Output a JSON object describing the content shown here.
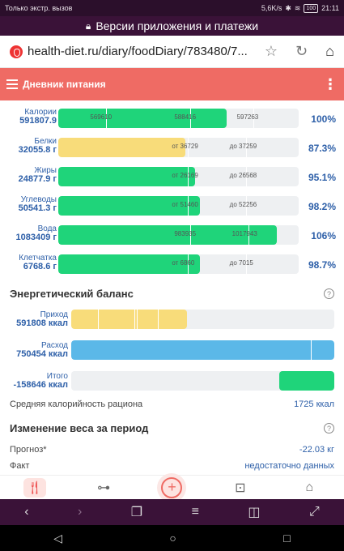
{
  "statusbar": {
    "left": "Только экстр. вызов",
    "right": "5,6K/s",
    "battery": "100",
    "time": "21:11"
  },
  "banner": {
    "text": "Версии приложения и платежи"
  },
  "browser": {
    "url": "health-diet.ru/diary/foodDiary/783480/7..."
  },
  "app": {
    "title": "Дневник питания"
  },
  "nutrients": [
    {
      "name": "Калории",
      "value": "591807.9",
      "marks": [
        "569610",
        "588416",
        "597263"
      ],
      "percent": "100%",
      "color": "#1fd47a",
      "fill": 0.7
    },
    {
      "name": "Белки",
      "value": "32055.8 г",
      "marks": [
        "от 36729",
        "до 37259"
      ],
      "percent": "87.3%",
      "color": "#f8dc7a",
      "fill": 0.53
    },
    {
      "name": "Жиры",
      "value": "24877.9 г",
      "marks": [
        "от 26169",
        "до 26568"
      ],
      "percent": "95.1%",
      "color": "#1fd47a",
      "fill": 0.57
    },
    {
      "name": "Углеводы",
      "value": "50541.3 г",
      "marks": [
        "от 51460",
        "до 52256"
      ],
      "percent": "98.2%",
      "color": "#1fd47a",
      "fill": 0.59
    },
    {
      "name": "Вода",
      "value": "1083409 г",
      "marks": [
        "983935",
        "1017943"
      ],
      "percent": "106%",
      "color": "#1fd47a",
      "fill": 0.91
    },
    {
      "name": "Клетчатка",
      "value": "6768.6 г",
      "marks": [
        "от 6860",
        "до 7015"
      ],
      "percent": "98.7%",
      "color": "#1fd47a",
      "fill": 0.59
    }
  ],
  "energy": {
    "title": "Энергетический баланс",
    "help": "?",
    "rows": [
      {
        "name": "Приход",
        "value": "591808 ккал",
        "color": "#f8dc7a",
        "fill": 0.44
      },
      {
        "name": "Расход",
        "value": "750454 ккал",
        "color": "#5bb8e8",
        "fill": 1.0
      },
      {
        "name": "Итого",
        "value": "-158646 ккал",
        "color": "#1fd47a",
        "fill": 0.21
      }
    ],
    "avg_label": "Средняя калорийность рациона",
    "avg_value": "1725 ккал"
  },
  "weight": {
    "title": "Изменение веса за период",
    "help": "?",
    "forecast_label": "Прогноз*",
    "forecast_value": "-22.03 кг",
    "fact_label": "Факт",
    "fact_value": "недостаточно данных"
  }
}
